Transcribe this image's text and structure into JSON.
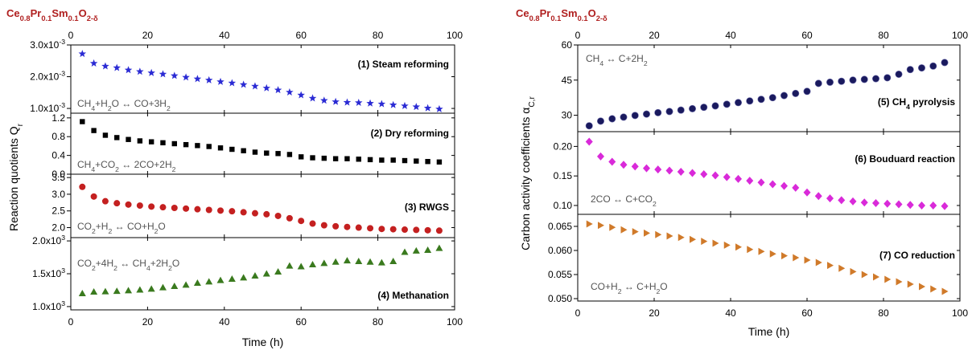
{
  "material": {
    "main": "Ce",
    "s1": "0.8",
    "e2": "Pr",
    "s2": "0.1",
    "e3": "Sm",
    "s3": "0.1",
    "e4": "O",
    "s4": "2-δ"
  },
  "left_ylabel": {
    "main": "Reaction quotients Q",
    "sub": "r"
  },
  "right_ylabel": {
    "main": "Carbon activity coefficients α",
    "sub": "C,r"
  },
  "xlabel": "Time (h)",
  "colors": {
    "title": "#b02020",
    "star": "#2b2bd4",
    "square": "#000000",
    "circle": "#c42020",
    "triangle": "#3a7a1e",
    "sphere": "#1a1a5e",
    "diamond": "#d92ad9",
    "right_tri": "#d07a2a",
    "equation": "#555555"
  },
  "chart_data": [
    {
      "id": "p1",
      "type": "scatter",
      "marker": "star",
      "title": "(1) Steam reforming",
      "equation": [
        "CH",
        "4",
        "+H",
        "2",
        "O ↔ CO+3H",
        "2",
        ""
      ],
      "ylim": [
        0.00085,
        0.003
      ],
      "yticks": [
        0.001,
        0.002,
        0.003
      ],
      "ytick_labels": [
        [
          "1.0x10",
          "-3"
        ],
        [
          "2.0x10",
          "-3"
        ],
        [
          "3.0x10",
          "-3"
        ]
      ],
      "x": [
        3,
        6,
        9,
        12,
        15,
        18,
        21,
        24,
        27,
        30,
        33,
        36,
        39,
        42,
        45,
        48,
        51,
        54,
        57,
        60,
        63,
        66,
        69,
        72,
        75,
        78,
        81,
        84,
        87,
        90,
        93,
        96
      ],
      "y": [
        0.00272,
        0.00242,
        0.00233,
        0.00228,
        0.00221,
        0.00216,
        0.00212,
        0.00208,
        0.00203,
        0.00198,
        0.00193,
        0.00189,
        0.00184,
        0.0018,
        0.00175,
        0.0017,
        0.00164,
        0.00158,
        0.00151,
        0.00142,
        0.00132,
        0.00125,
        0.00121,
        0.00119,
        0.00118,
        0.00116,
        0.00114,
        0.00111,
        0.00108,
        0.00105,
        0.00101,
        0.00098
      ]
    },
    {
      "id": "p2",
      "type": "scatter",
      "marker": "square",
      "title": "(2) Dry reforming",
      "equation": [
        "CH",
        "4",
        "+CO",
        "2",
        " ↔ 2CO+2H",
        "2",
        ""
      ],
      "ylim": [
        0,
        1.3
      ],
      "yticks": [
        0,
        0.4,
        0.8,
        1.2
      ],
      "ytick_labels": [
        [
          "0.0",
          ""
        ],
        [
          "0.4",
          ""
        ],
        [
          "0.8",
          ""
        ],
        [
          "1.2",
          ""
        ]
      ],
      "x": [
        3,
        6,
        9,
        12,
        15,
        18,
        21,
        24,
        27,
        30,
        33,
        36,
        39,
        42,
        45,
        48,
        51,
        54,
        57,
        60,
        63,
        66,
        69,
        72,
        75,
        78,
        81,
        84,
        87,
        90,
        93,
        96
      ],
      "y": [
        1.12,
        0.93,
        0.83,
        0.78,
        0.74,
        0.71,
        0.69,
        0.67,
        0.65,
        0.63,
        0.61,
        0.59,
        0.56,
        0.53,
        0.5,
        0.47,
        0.45,
        0.44,
        0.42,
        0.37,
        0.35,
        0.34,
        0.33,
        0.33,
        0.32,
        0.31,
        0.3,
        0.3,
        0.29,
        0.28,
        0.27,
        0.26
      ]
    },
    {
      "id": "p3",
      "type": "scatter",
      "marker": "circle",
      "title": "(3) RWGS",
      "equation": [
        "CO",
        "2",
        "+H",
        "2",
        " ↔ CO+H",
        "2",
        "O"
      ],
      "ylim": [
        1.7,
        3.6
      ],
      "yticks": [
        2.0,
        2.5,
        3.0,
        3.5
      ],
      "ytick_labels": [
        [
          "2.0",
          ""
        ],
        [
          "2.5",
          ""
        ],
        [
          "3.0",
          ""
        ],
        [
          "3.5",
          ""
        ]
      ],
      "x": [
        3,
        6,
        9,
        12,
        15,
        18,
        21,
        24,
        27,
        30,
        33,
        36,
        39,
        42,
        45,
        48,
        51,
        54,
        57,
        60,
        63,
        66,
        69,
        72,
        75,
        78,
        81,
        84,
        87,
        90,
        93,
        96
      ],
      "y": [
        3.22,
        2.93,
        2.79,
        2.73,
        2.69,
        2.66,
        2.63,
        2.61,
        2.59,
        2.57,
        2.55,
        2.53,
        2.51,
        2.49,
        2.46,
        2.43,
        2.4,
        2.35,
        2.28,
        2.2,
        2.12,
        2.07,
        2.04,
        2.02,
        2.0,
        1.98,
        1.96,
        1.95,
        1.94,
        1.93,
        1.92,
        1.91
      ]
    },
    {
      "id": "p4",
      "type": "scatter",
      "marker": "triangle",
      "title": "(4) Methanation",
      "equation": [
        "CO",
        "2",
        "+4H",
        "2",
        " ↔ CH",
        "4",
        "+2H",
        "2",
        "O"
      ],
      "ylim": [
        950,
        2050
      ],
      "yticks": [
        1000,
        1500,
        2000
      ],
      "ytick_labels": [
        [
          "1.0x10",
          "3"
        ],
        [
          "1.5x10",
          "3"
        ],
        [
          "2.0x10",
          "3"
        ]
      ],
      "x": [
        3,
        6,
        9,
        12,
        15,
        18,
        21,
        24,
        27,
        30,
        33,
        36,
        39,
        42,
        45,
        48,
        51,
        54,
        57,
        60,
        63,
        66,
        69,
        72,
        75,
        78,
        81,
        84,
        87,
        90,
        93,
        96
      ],
      "y": [
        1200,
        1225,
        1230,
        1235,
        1245,
        1255,
        1270,
        1290,
        1310,
        1330,
        1360,
        1380,
        1400,
        1420,
        1440,
        1470,
        1500,
        1530,
        1620,
        1610,
        1640,
        1660,
        1680,
        1700,
        1690,
        1680,
        1670,
        1690,
        1830,
        1850,
        1860,
        1890
      ]
    },
    {
      "id": "p5",
      "type": "scatter",
      "marker": "sphere",
      "title": [
        "(5) CH",
        "4",
        " pyrolysis"
      ],
      "equation": [
        "CH",
        "4",
        " ↔ C+2H",
        "2",
        ""
      ],
      "ylim": [
        23,
        60
      ],
      "yticks": [
        30,
        45,
        60
      ],
      "ytick_labels": [
        [
          "30",
          ""
        ],
        [
          "45",
          ""
        ],
        [
          "60",
          ""
        ]
      ],
      "x": [
        3,
        6,
        9,
        12,
        15,
        18,
        21,
        24,
        27,
        30,
        33,
        36,
        39,
        42,
        45,
        48,
        51,
        54,
        57,
        60,
        63,
        66,
        69,
        72,
        75,
        78,
        81,
        84,
        87,
        90,
        93,
        96
      ],
      "y": [
        25.5,
        27.5,
        28.5,
        29.2,
        29.9,
        30.5,
        31.1,
        31.6,
        32.2,
        32.8,
        33.4,
        34.0,
        34.7,
        35.4,
        36.1,
        36.8,
        37.5,
        38.4,
        39.3,
        40.2,
        43.6,
        44.1,
        44.5,
        45.0,
        45.3,
        45.6,
        46.0,
        47.5,
        49.5,
        50.2,
        51.0,
        52.5
      ]
    },
    {
      "id": "p6",
      "type": "scatter",
      "marker": "diamond",
      "title": "(6) Bouduard reaction",
      "equation": [
        "2CO ↔ C+CO",
        "2",
        ""
      ],
      "ylim": [
        0.085,
        0.225
      ],
      "yticks": [
        0.1,
        0.15,
        0.2
      ],
      "ytick_labels": [
        [
          "0.10",
          ""
        ],
        [
          "0.15",
          ""
        ],
        [
          "0.20",
          ""
        ]
      ],
      "x": [
        3,
        6,
        9,
        12,
        15,
        18,
        21,
        24,
        27,
        30,
        33,
        36,
        39,
        42,
        45,
        48,
        51,
        54,
        57,
        60,
        63,
        66,
        69,
        72,
        75,
        78,
        81,
        84,
        87,
        90,
        93,
        96
      ],
      "y": [
        0.208,
        0.183,
        0.174,
        0.169,
        0.166,
        0.163,
        0.161,
        0.159,
        0.157,
        0.155,
        0.153,
        0.151,
        0.148,
        0.145,
        0.142,
        0.139,
        0.136,
        0.133,
        0.13,
        0.122,
        0.116,
        0.112,
        0.109,
        0.107,
        0.105,
        0.104,
        0.103,
        0.102,
        0.101,
        0.1,
        0.1,
        0.099
      ]
    },
    {
      "id": "p7",
      "type": "scatter",
      "marker": "right-triangle",
      "title": "(7) CO reduction",
      "equation": [
        "CO+H",
        "2",
        " ↔ C+H",
        "2",
        "O"
      ],
      "ylim": [
        0.0495,
        0.0675
      ],
      "yticks": [
        0.05,
        0.055,
        0.06,
        0.065
      ],
      "ytick_labels": [
        [
          "0.050",
          ""
        ],
        [
          "0.055",
          ""
        ],
        [
          "0.060",
          ""
        ],
        [
          "0.065",
          ""
        ]
      ],
      "x": [
        3,
        6,
        9,
        12,
        15,
        18,
        21,
        24,
        27,
        30,
        33,
        36,
        39,
        42,
        45,
        48,
        51,
        54,
        57,
        60,
        63,
        66,
        69,
        72,
        75,
        78,
        81,
        84,
        87,
        90,
        93,
        96
      ],
      "y": [
        0.0655,
        0.0652,
        0.0648,
        0.0643,
        0.0639,
        0.0636,
        0.0633,
        0.063,
        0.0627,
        0.0623,
        0.0619,
        0.0615,
        0.0611,
        0.0607,
        0.0602,
        0.0598,
        0.0593,
        0.0589,
        0.0585,
        0.058,
        0.0575,
        0.0569,
        0.0563,
        0.0556,
        0.055,
        0.0545,
        0.054,
        0.0535,
        0.053,
        0.0525,
        0.052,
        0.0515
      ]
    }
  ],
  "xaxis": {
    "xlim": [
      0,
      100
    ],
    "xticks": [
      0,
      20,
      40,
      60,
      80,
      100
    ],
    "xtick_labels": [
      "0",
      "20",
      "40",
      "60",
      "80",
      "100"
    ]
  }
}
